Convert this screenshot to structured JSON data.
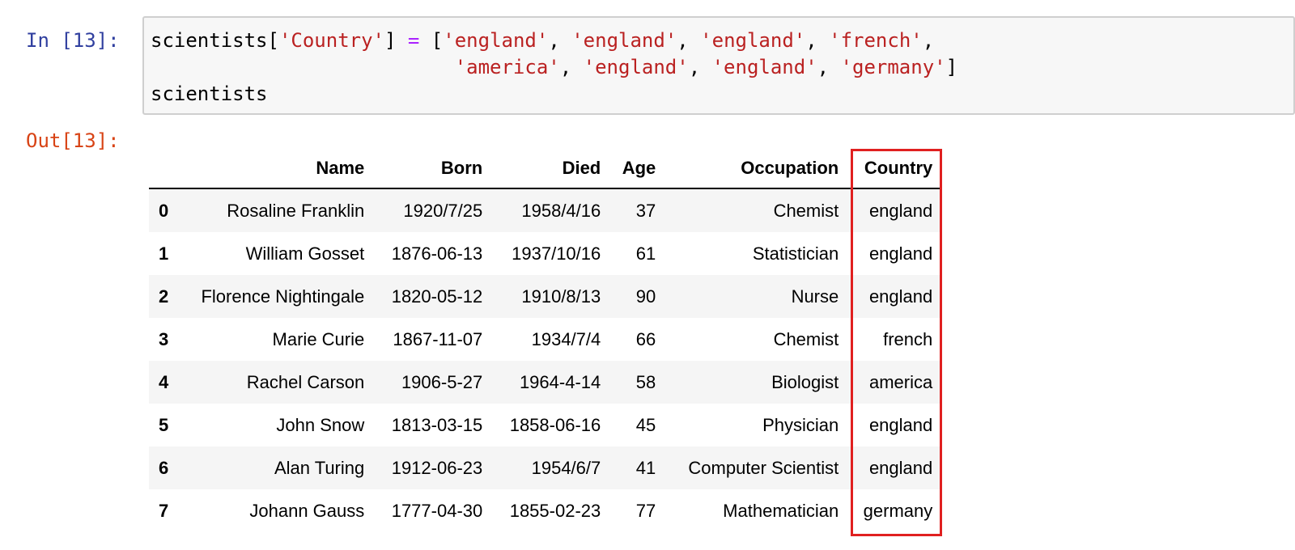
{
  "input_prompt": "In [13]:",
  "output_prompt": "Out[13]:",
  "code": {
    "line1": {
      "var": "scientists[",
      "key": "'Country'",
      "close": "] ",
      "assign": "=",
      "open": " [",
      "s1": "'england'",
      "s2": "'england'",
      "s3": "'england'",
      "s4": "'french'",
      "trail": ","
    },
    "line2": {
      "indent": "                          ",
      "s5": "'america'",
      "s6": "'england'",
      "s7": "'england'",
      "s8": "'germany'",
      "close": "]"
    },
    "line3": "scientists",
    "sep": ", "
  },
  "table": {
    "columns": [
      "",
      "Name",
      "Born",
      "Died",
      "Age",
      "Occupation",
      "Country"
    ],
    "rows": [
      {
        "index": "0",
        "name": "Rosaline Franklin",
        "born": "1920/7/25",
        "died": "1958/4/16",
        "age": "37",
        "occupation": "Chemist",
        "country": "england"
      },
      {
        "index": "1",
        "name": "William Gosset",
        "born": "1876-06-13",
        "died": "1937/10/16",
        "age": "61",
        "occupation": "Statistician",
        "country": "england"
      },
      {
        "index": "2",
        "name": "Florence Nightingale",
        "born": "1820-05-12",
        "died": "1910/8/13",
        "age": "90",
        "occupation": "Nurse",
        "country": "england"
      },
      {
        "index": "3",
        "name": "Marie Curie",
        "born": "1867-11-07",
        "died": "1934/7/4",
        "age": "66",
        "occupation": "Chemist",
        "country": "french"
      },
      {
        "index": "4",
        "name": "Rachel Carson",
        "born": "1906-5-27",
        "died": "1964-4-14",
        "age": "58",
        "occupation": "Biologist",
        "country": "america"
      },
      {
        "index": "5",
        "name": "John Snow",
        "born": "1813-03-15",
        "died": "1858-06-16",
        "age": "45",
        "occupation": "Physician",
        "country": "england"
      },
      {
        "index": "6",
        "name": "Alan Turing",
        "born": "1912-06-23",
        "died": "1954/6/7",
        "age": "41",
        "occupation": "Computer Scientist",
        "country": "england"
      },
      {
        "index": "7",
        "name": "Johann Gauss",
        "born": "1777-04-30",
        "died": "1855-02-23",
        "age": "77",
        "occupation": "Mathematician",
        "country": "germany"
      }
    ]
  },
  "colors": {
    "prompt_in": "#303f9f",
    "prompt_out": "#d84315",
    "string": "#ba2121",
    "operator": "#aa22ff",
    "highlight": "#e02020"
  }
}
